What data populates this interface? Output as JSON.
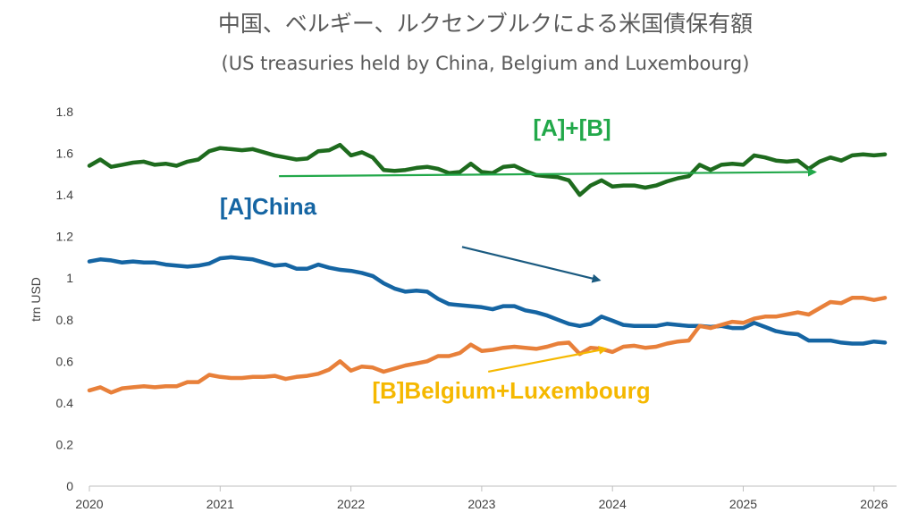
{
  "chart_data": {
    "type": "line",
    "title": "中国、ベルギー、ルクセンブルクによる米国債保有額",
    "subtitle": "(US treasuries held by China, Belgium and Luxembourg)",
    "ylabel": "trn USD",
    "xlabel": "",
    "xlim": [
      2020,
      2026.1
    ],
    "ylim": [
      0,
      1.8
    ],
    "x_ticks": [
      "2020",
      "2021",
      "2022",
      "2023",
      "2024",
      "2025",
      "2026"
    ],
    "y_ticks": [
      "0",
      "0.2",
      "0.4",
      "0.6",
      "0.8",
      "1",
      "1.2",
      "1.4",
      "1.6",
      "1.8"
    ],
    "grid": false,
    "legend": "none",
    "x": [
      2020.0,
      2020.0833,
      2020.1667,
      2020.25,
      2020.3333,
      2020.4167,
      2020.5,
      2020.5833,
      2020.6667,
      2020.75,
      2020.8333,
      2020.9167,
      2021.0,
      2021.0833,
      2021.1667,
      2021.25,
      2021.3333,
      2021.4167,
      2021.5,
      2021.5833,
      2021.6667,
      2021.75,
      2021.8333,
      2021.9167,
      2022.0,
      2022.0833,
      2022.1667,
      2022.25,
      2022.3333,
      2022.4167,
      2022.5,
      2022.5833,
      2022.6667,
      2022.75,
      2022.8333,
      2022.9167,
      2023.0,
      2023.0833,
      2023.1667,
      2023.25,
      2023.3333,
      2023.4167,
      2023.5,
      2023.5833,
      2023.6667,
      2023.75,
      2023.8333,
      2023.9167,
      2024.0,
      2024.0833,
      2024.1667,
      2024.25,
      2024.3333,
      2024.4167,
      2024.5,
      2024.5833,
      2024.6667,
      2024.75,
      2024.8333,
      2024.9167,
      2025.0,
      2025.0833,
      2025.1667,
      2025.25,
      2025.3333,
      2025.4167,
      2025.5,
      2025.5833,
      2025.6667,
      2025.75,
      2025.8333,
      2025.9167,
      2026.0,
      2026.0833
    ],
    "series": [
      {
        "name": "[A]+[B]",
        "color": "#1e6b1e",
        "values": [
          1.54,
          1.57,
          1.535,
          1.545,
          1.555,
          1.56,
          1.545,
          1.55,
          1.54,
          1.56,
          1.57,
          1.61,
          1.625,
          1.62,
          1.615,
          1.62,
          1.605,
          1.59,
          1.58,
          1.57,
          1.575,
          1.61,
          1.615,
          1.64,
          1.59,
          1.605,
          1.58,
          1.52,
          1.515,
          1.52,
          1.53,
          1.535,
          1.525,
          1.505,
          1.51,
          1.55,
          1.51,
          1.505,
          1.535,
          1.54,
          1.515,
          1.495,
          1.49,
          1.485,
          1.47,
          1.4,
          1.445,
          1.47,
          1.44,
          1.445,
          1.445,
          1.435,
          1.445,
          1.465,
          1.48,
          1.49,
          1.545,
          1.52,
          1.545,
          1.55,
          1.545,
          1.59,
          1.58,
          1.565,
          1.56,
          1.565,
          1.525,
          1.56,
          1.58,
          1.565,
          1.59,
          1.595,
          1.59,
          1.595
        ]
      },
      {
        "name": "[A]China",
        "color": "#1565a3",
        "values": [
          1.08,
          1.09,
          1.085,
          1.075,
          1.08,
          1.075,
          1.075,
          1.065,
          1.06,
          1.055,
          1.06,
          1.07,
          1.095,
          1.1,
          1.095,
          1.09,
          1.075,
          1.06,
          1.065,
          1.045,
          1.045,
          1.065,
          1.05,
          1.04,
          1.035,
          1.025,
          1.01,
          0.975,
          0.95,
          0.935,
          0.94,
          0.935,
          0.9,
          0.875,
          0.87,
          0.865,
          0.86,
          0.85,
          0.865,
          0.865,
          0.845,
          0.835,
          0.82,
          0.8,
          0.78,
          0.77,
          0.78,
          0.815,
          0.795,
          0.775,
          0.77,
          0.77,
          0.77,
          0.78,
          0.775,
          0.77,
          0.77,
          0.765,
          0.77,
          0.76,
          0.76,
          0.785,
          0.765,
          0.745,
          0.735,
          0.73,
          0.7,
          0.7,
          0.7,
          0.69,
          0.685,
          0.685,
          0.695,
          0.69
        ]
      },
      {
        "name": "[B]Belgium+Luxembourg",
        "color": "#e8803a",
        "values": [
          0.46,
          0.475,
          0.45,
          0.47,
          0.475,
          0.48,
          0.475,
          0.48,
          0.48,
          0.5,
          0.5,
          0.535,
          0.525,
          0.52,
          0.52,
          0.525,
          0.525,
          0.53,
          0.515,
          0.525,
          0.53,
          0.54,
          0.56,
          0.6,
          0.555,
          0.575,
          0.57,
          0.55,
          0.565,
          0.58,
          0.59,
          0.6,
          0.625,
          0.625,
          0.64,
          0.68,
          0.65,
          0.655,
          0.665,
          0.67,
          0.665,
          0.66,
          0.67,
          0.685,
          0.69,
          0.635,
          0.665,
          0.66,
          0.645,
          0.67,
          0.675,
          0.665,
          0.67,
          0.685,
          0.695,
          0.7,
          0.77,
          0.76,
          0.775,
          0.79,
          0.785,
          0.805,
          0.815,
          0.815,
          0.825,
          0.835,
          0.825,
          0.855,
          0.885,
          0.88,
          0.905,
          0.905,
          0.895,
          0.905
        ]
      }
    ],
    "annotations": [
      {
        "text": "[A]+[B]",
        "color": "#22a84a",
        "arrow_from": [
          2021.45,
          1.49
        ],
        "arrow_to": [
          2025.55,
          1.51
        ]
      },
      {
        "text": "[A]China",
        "color": "#1565a3",
        "arrow_from": [
          2022.85,
          1.15
        ],
        "arrow_to": [
          2023.9,
          0.99
        ]
      },
      {
        "text": "[B]Belgium+Luxembourg",
        "color": "#f5b800",
        "arrow_from": [
          2023.05,
          0.55
        ],
        "arrow_to": [
          2023.95,
          0.66
        ]
      }
    ]
  }
}
